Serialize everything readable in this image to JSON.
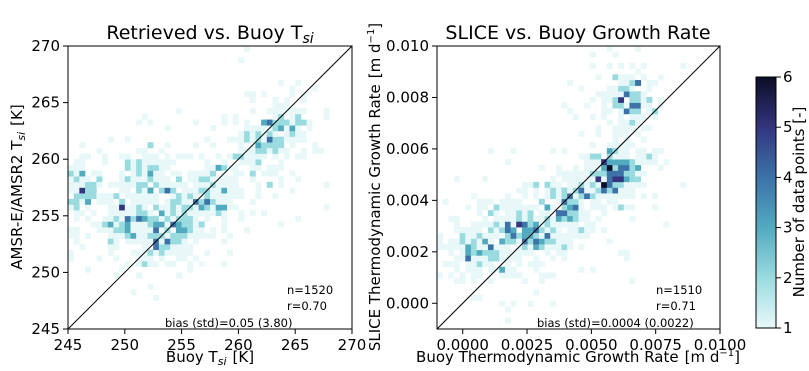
{
  "chart_data": [
    {
      "type": "heatmap",
      "title": "Retrieved vs. Buoy T",
      "title_sub": "si",
      "xlabel": "Buoy T",
      "xlabel_sub": "si",
      "xlabel_unit": "[K]",
      "ylabel": "AMSR-E/AMSR2 T",
      "ylabel_sub": "si",
      "ylabel_unit": "[K]",
      "xlim": [
        245,
        270
      ],
      "ylim": [
        245,
        270
      ],
      "xticks": [
        245,
        250,
        255,
        260,
        265,
        270
      ],
      "yticks": [
        245,
        250,
        255,
        260,
        265,
        270
      ],
      "xtick_labels": [
        "245",
        "250",
        "255",
        "260",
        "265",
        "270"
      ],
      "ytick_labels": [
        "245",
        "250",
        "255",
        "260",
        "265",
        "270"
      ],
      "one_to_one_line": true,
      "bins": 50,
      "stats": {
        "n": "n=1520",
        "r": "r=0.70",
        "bias": "bias (std)=0.05 (3.80)"
      },
      "density_centers": [
        [
          245.5,
          257.0
        ],
        [
          252.0,
          258.5
        ],
        [
          255.0,
          255.0
        ],
        [
          258.0,
          257.0
        ],
        [
          262.0,
          261.0
        ],
        [
          264.0,
          263.0
        ],
        [
          253.5,
          253.0
        ],
        [
          250.0,
          254.5
        ]
      ]
    },
    {
      "type": "heatmap",
      "title": "SLICE vs. Buoy Growth Rate",
      "xlabel": "Buoy Thermodynamic Growth Rate",
      "xlabel_unit": "[m d",
      "xlabel_unit_sup": "−1",
      "ylabel": "SLICE Thermodynamic Growth Rate",
      "ylabel_unit": "[m d",
      "ylabel_unit_sup": "−1",
      "xlim": [
        -0.001,
        0.01
      ],
      "ylim": [
        -0.001,
        0.01
      ],
      "xticks": [
        0.0,
        0.0025,
        0.005,
        0.0075,
        0.01
      ],
      "yticks": [
        0.0,
        0.002,
        0.004,
        0.006,
        0.008,
        0.01
      ],
      "xtick_labels": [
        "0.0000",
        "0.0025",
        "0.0050",
        "0.0075",
        "0.0100"
      ],
      "ytick_labels": [
        "0.000",
        "0.002",
        "0.004",
        "0.006",
        "0.008",
        "0.010"
      ],
      "one_to_one_line": true,
      "bins": 50,
      "stats": {
        "n": "n=1510",
        "r": "r=0.71",
        "bias": "bias (std)=0.0004 (0.0022)"
      },
      "density_centers": [
        [
          0.0005,
          0.0022
        ],
        [
          0.002,
          0.003
        ],
        [
          0.003,
          0.0028
        ],
        [
          0.004,
          0.0038
        ],
        [
          0.0055,
          0.0048
        ],
        [
          0.006,
          0.0052
        ],
        [
          0.0065,
          0.008
        ]
      ]
    }
  ],
  "colorbar": {
    "label": "Number of data points [-]",
    "range": [
      1,
      6
    ],
    "ticks": [
      "1",
      "2",
      "3",
      "4",
      "5",
      "6"
    ],
    "colors": [
      "#e8f8f9",
      "#9adbe0",
      "#52aabf",
      "#3c72a8",
      "#33357e",
      "#0c0d26"
    ]
  }
}
